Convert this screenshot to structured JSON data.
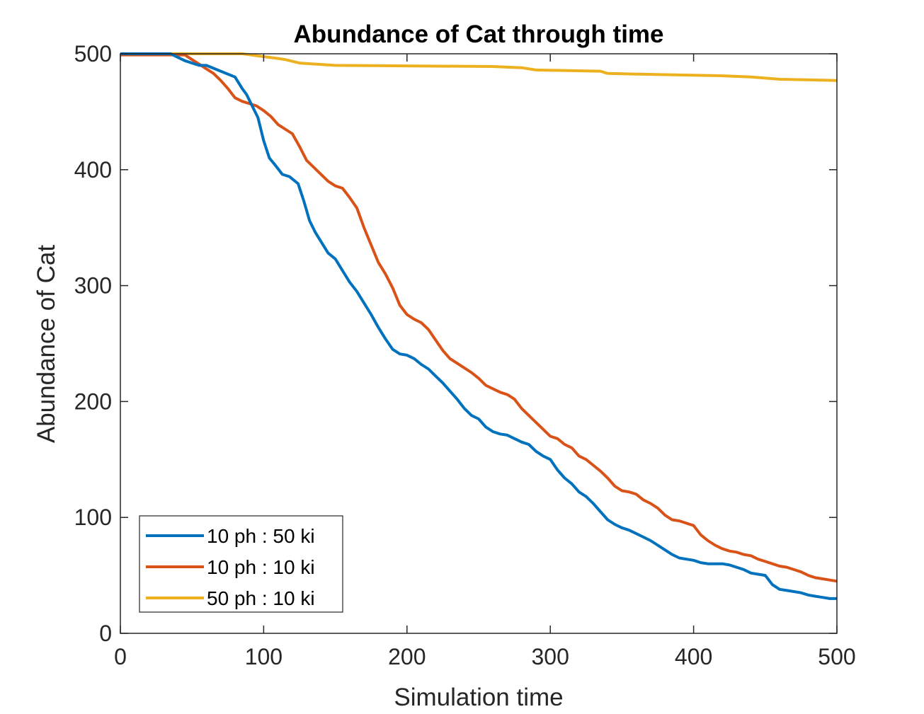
{
  "chart_data": {
    "type": "line",
    "title": "Abundance of Cat through time",
    "xlabel": "Simulation time",
    "ylabel": "Abundance of Cat",
    "xlim": [
      0,
      500
    ],
    "ylim": [
      0,
      500
    ],
    "xticks": [
      "0",
      "100",
      "200",
      "300",
      "400",
      "500"
    ],
    "yticks": [
      "0",
      "100",
      "200",
      "300",
      "400",
      "500"
    ],
    "grid": false,
    "legend_position": "bottom-left",
    "series": [
      {
        "name": "10 ph : 50 ki",
        "color": "#0072BD",
        "x": [
          0,
          35,
          40,
          45,
          55,
          60,
          70,
          80,
          85,
          88,
          92,
          96,
          100,
          104,
          108,
          113,
          118,
          124,
          128,
          132,
          136,
          140,
          145,
          150,
          155,
          160,
          165,
          170,
          175,
          180,
          185,
          190,
          195,
          200,
          205,
          210,
          215,
          220,
          225,
          230,
          235,
          240,
          245,
          250,
          255,
          260,
          265,
          270,
          275,
          280,
          285,
          290,
          295,
          300,
          305,
          310,
          315,
          320,
          325,
          330,
          335,
          340,
          345,
          350,
          355,
          360,
          365,
          370,
          375,
          380,
          385,
          390,
          395,
          400,
          405,
          410,
          415,
          420,
          425,
          430,
          435,
          440,
          445,
          450,
          455,
          460,
          465,
          470,
          475,
          480,
          485,
          490,
          495,
          500
        ],
        "y": [
          500,
          500,
          497,
          494,
          490,
          490,
          485,
          480,
          470,
          465,
          455,
          445,
          425,
          410,
          404,
          396,
          394,
          388,
          373,
          356,
          346,
          338,
          328,
          323,
          313,
          303,
          295,
          285,
          275,
          264,
          254,
          245,
          241,
          240,
          237,
          232,
          228,
          222,
          216,
          209,
          202,
          194,
          188,
          185,
          178,
          174,
          172,
          171,
          168,
          165,
          163,
          157,
          153,
          150,
          141,
          134,
          129,
          122,
          118,
          112,
          105,
          98,
          94,
          91,
          89,
          86,
          83,
          80,
          76,
          72,
          68,
          65,
          64,
          63,
          61,
          60,
          60,
          60,
          59,
          57,
          55,
          52,
          51,
          50,
          42,
          38,
          37,
          36,
          35,
          33,
          32,
          31,
          30,
          30
        ]
      },
      {
        "name": "10 ph : 10 ki",
        "color": "#D95319",
        "x": [
          0,
          45,
          50,
          55,
          60,
          65,
          70,
          75,
          80,
          85,
          90,
          95,
          100,
          105,
          110,
          115,
          120,
          125,
          130,
          135,
          140,
          145,
          150,
          155,
          160,
          165,
          170,
          175,
          180,
          185,
          190,
          195,
          200,
          205,
          210,
          215,
          220,
          225,
          230,
          235,
          240,
          245,
          250,
          255,
          260,
          265,
          270,
          275,
          280,
          285,
          290,
          295,
          300,
          305,
          310,
          315,
          320,
          325,
          330,
          335,
          340,
          345,
          350,
          355,
          360,
          365,
          370,
          375,
          380,
          385,
          390,
          395,
          400,
          405,
          410,
          415,
          420,
          425,
          430,
          435,
          440,
          445,
          450,
          455,
          460,
          465,
          470,
          475,
          480,
          485,
          490,
          495,
          500
        ],
        "y": [
          499,
          499,
          495,
          491,
          487,
          483,
          477,
          470,
          462,
          459,
          457,
          455,
          451,
          446,
          439,
          435,
          431,
          420,
          408,
          402,
          396,
          390,
          386,
          384,
          376,
          367,
          350,
          335,
          320,
          310,
          298,
          283,
          275,
          271,
          268,
          262,
          253,
          244,
          237,
          233,
          229,
          225,
          220,
          214,
          211,
          208,
          206,
          202,
          194,
          188,
          182,
          176,
          170,
          168,
          163,
          160,
          153,
          150,
          145,
          140,
          134,
          127,
          123,
          122,
          120,
          115,
          112,
          108,
          102,
          98,
          97,
          95,
          93,
          85,
          80,
          76,
          73,
          71,
          70,
          68,
          67,
          64,
          62,
          60,
          58,
          57,
          55,
          53,
          50,
          48,
          47,
          46,
          45
        ]
      },
      {
        "name": "50 ph : 10 ki",
        "color": "#EDB120",
        "x": [
          0,
          85,
          110,
          115,
          125,
          150,
          260,
          280,
          290,
          335,
          340,
          380,
          420,
          440,
          460,
          500
        ],
        "y": [
          500,
          500,
          496,
          495,
          492,
          490,
          489,
          488,
          486,
          485,
          483,
          482,
          481,
          480,
          478,
          477
        ]
      }
    ]
  }
}
